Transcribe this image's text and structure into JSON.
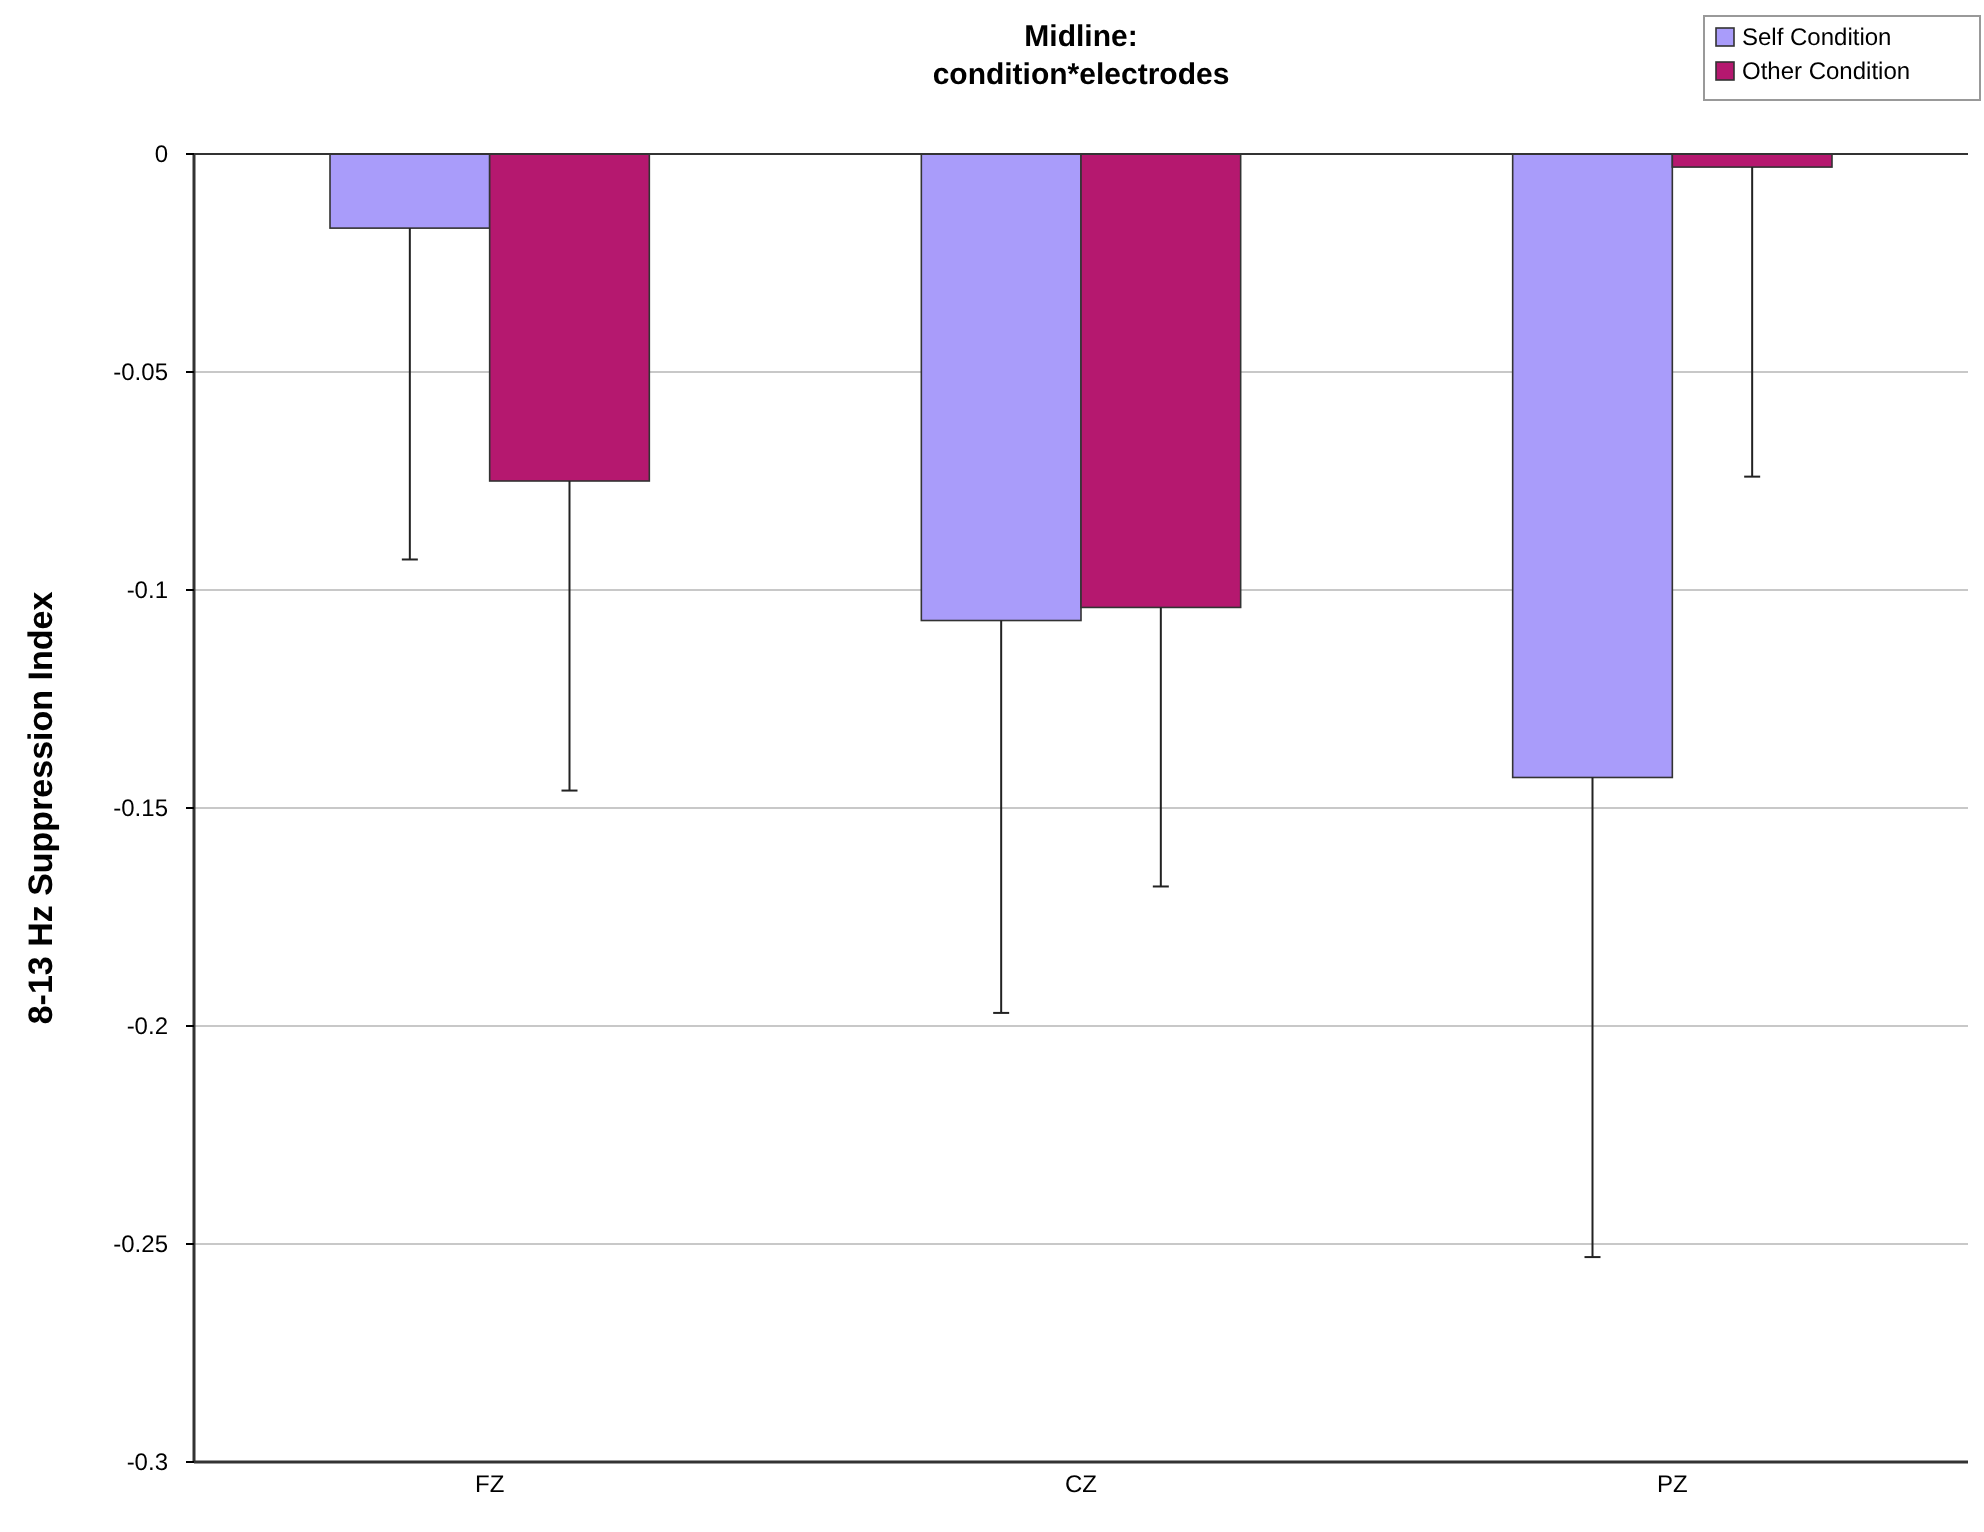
{
  "chart_data": {
    "type": "bar",
    "title": "Midline:\ncondition*electrodes",
    "ylabel": "8-13 Hz Suppression Index",
    "categories": [
      "FZ",
      "CZ",
      "PZ"
    ],
    "series": [
      {
        "name": "Self Condition",
        "color": "#a99cfa",
        "values": [
          -0.017,
          -0.107,
          -0.143
        ],
        "errors": [
          [
            -0.093,
            -0.017
          ],
          [
            -0.197,
            -0.107
          ],
          [
            -0.253,
            -0.143
          ]
        ]
      },
      {
        "name": "Other Condition",
        "color": "#b5186f",
        "values": [
          -0.075,
          -0.104,
          -0.003
        ],
        "errors": [
          [
            -0.146,
            -0.075
          ],
          [
            -0.168,
            -0.104
          ],
          [
            -0.074,
            -0.003
          ]
        ]
      }
    ],
    "ylim": [
      -0.3,
      0
    ],
    "yticks": [
      -0.3,
      -0.25,
      -0.2,
      -0.15,
      -0.1,
      -0.05,
      0
    ],
    "grid": "y",
    "legend": "top right"
  }
}
